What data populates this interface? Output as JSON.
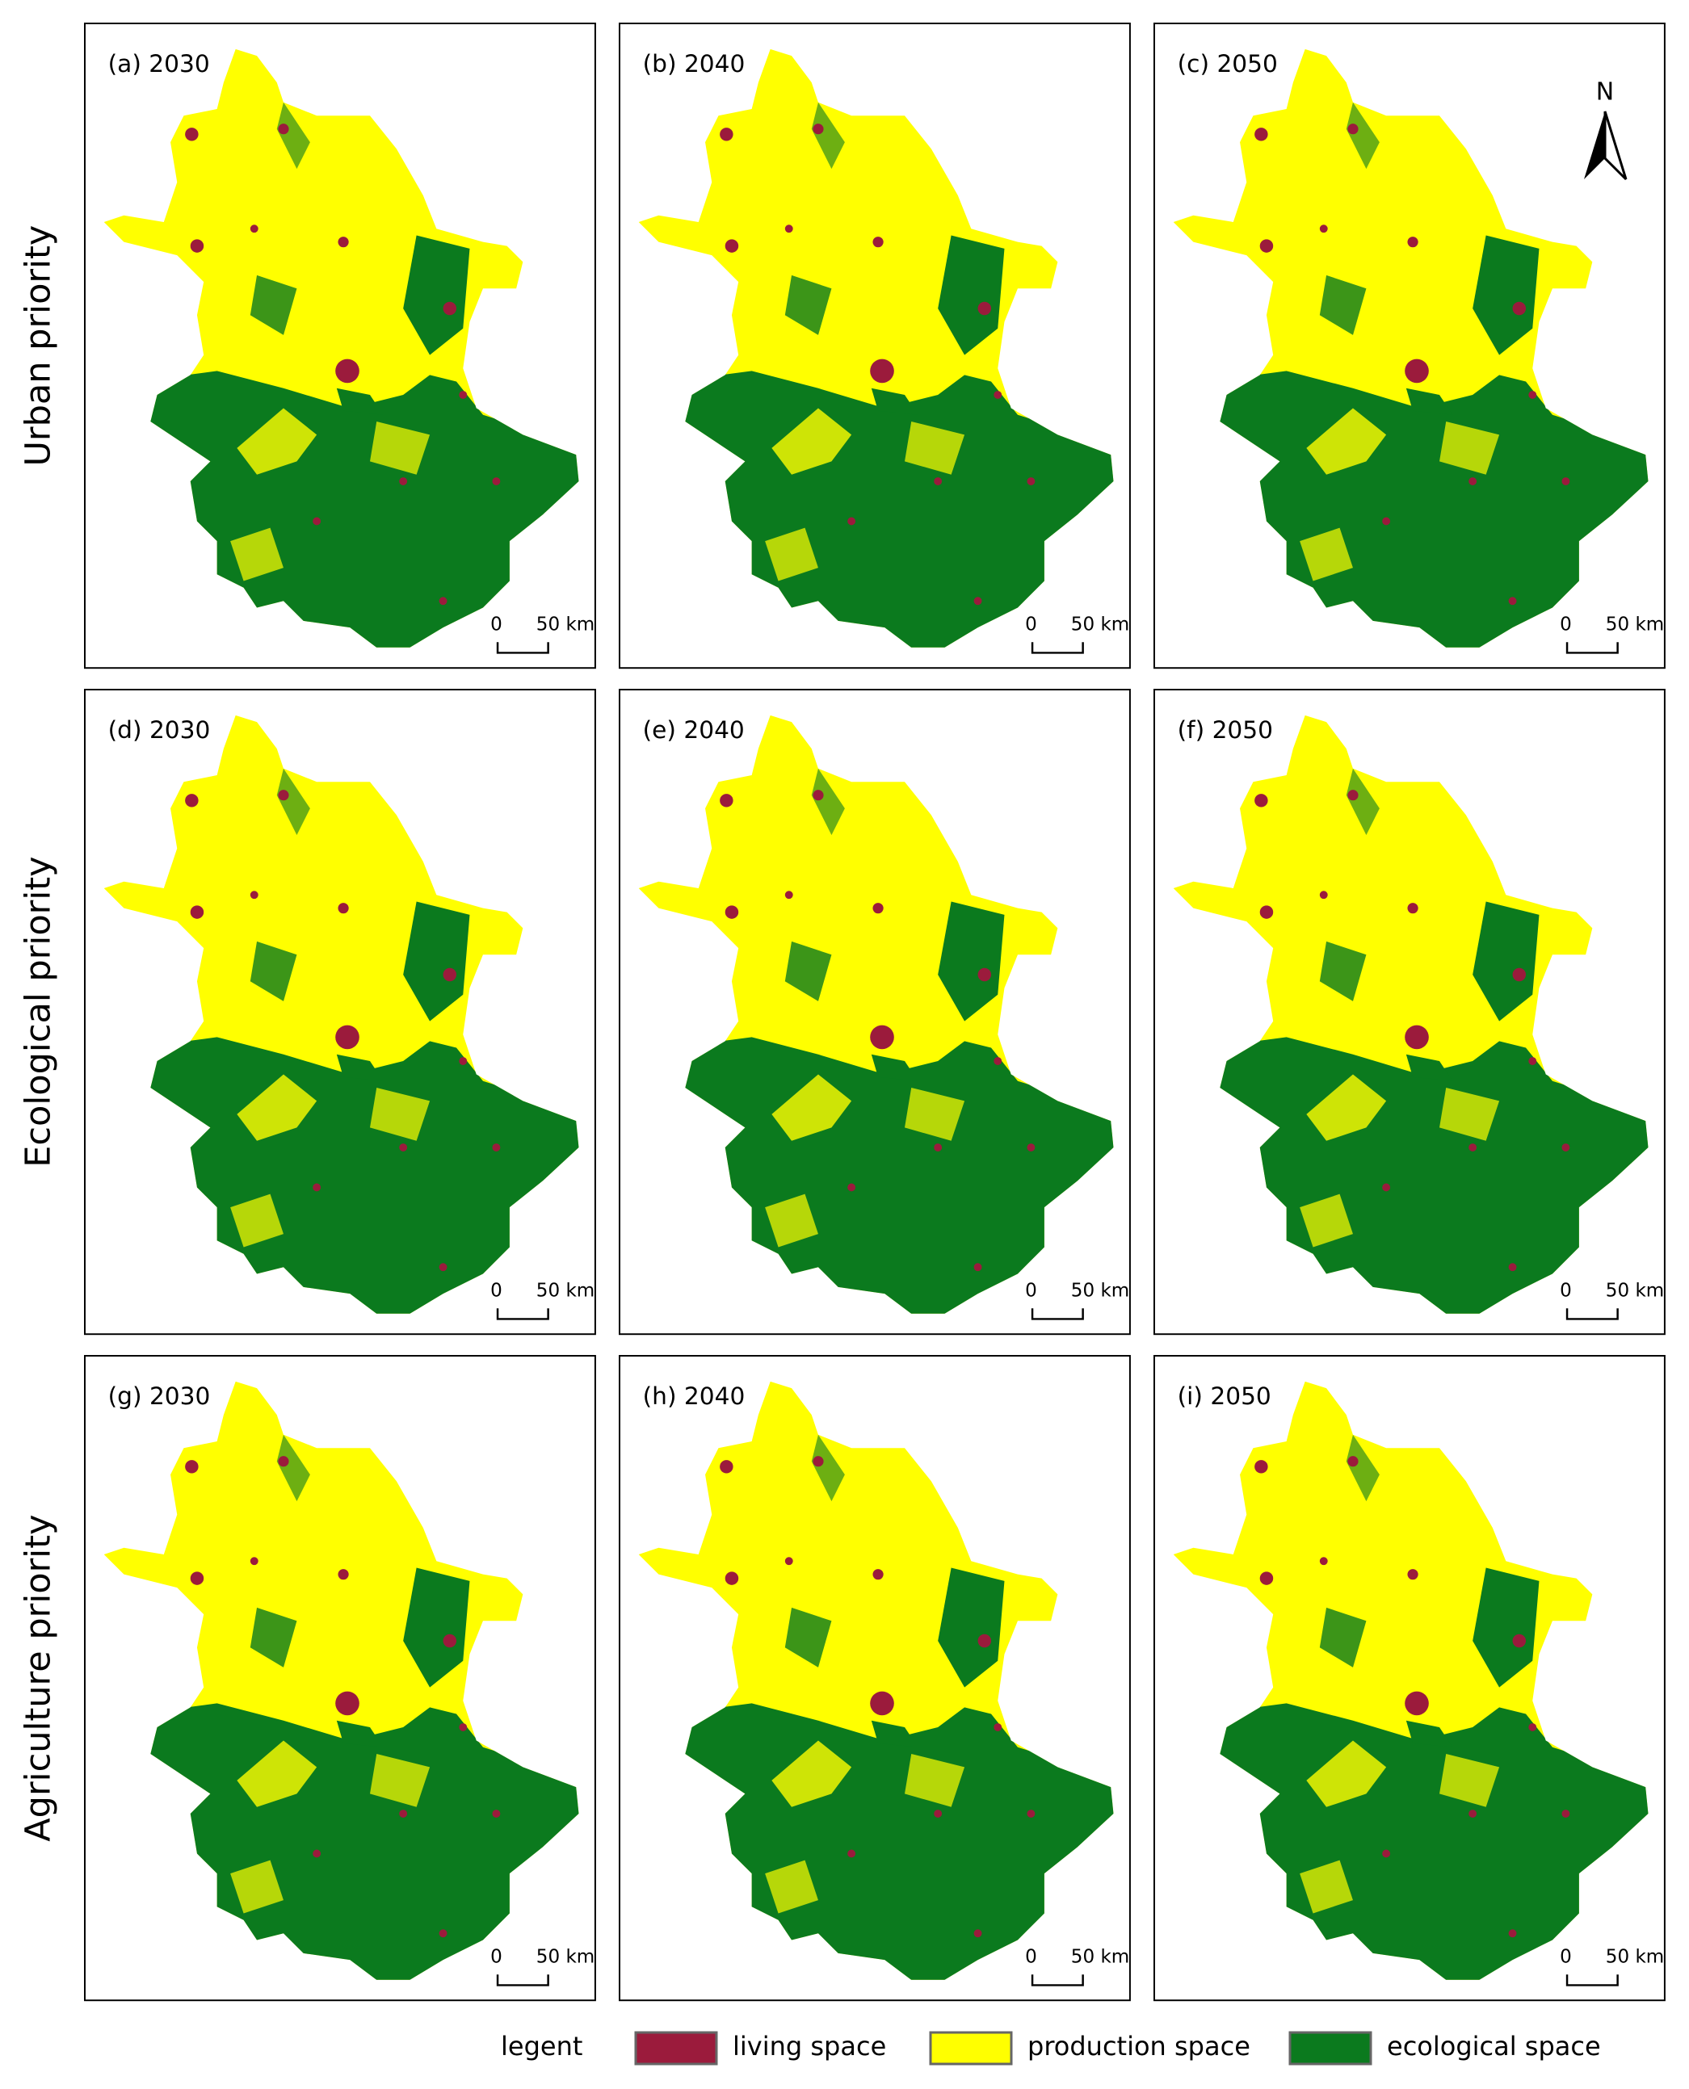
{
  "rows": [
    {
      "label": "Urban priority",
      "panels": [
        "(a) 2030",
        "(b) 2040",
        "(c) 2050"
      ]
    },
    {
      "label": "Ecological priority",
      "panels": [
        "(d) 2030",
        "(e) 2040",
        "(f) 2050"
      ]
    },
    {
      "label": "Agriculture priority",
      "panels": [
        "(g) 2030",
        "(h) 2040",
        "(i) 2050"
      ]
    }
  ],
  "scale_bar": {
    "zero": "0",
    "distance": "50 km"
  },
  "north_arrow": "N",
  "legend": {
    "title": "legent",
    "items": [
      {
        "label": "living space",
        "color": "#9b1b3c"
      },
      {
        "label": "production  space",
        "color": "#ffff00"
      },
      {
        "label": "ecological space",
        "color": "#0b7a1e"
      }
    ]
  }
}
